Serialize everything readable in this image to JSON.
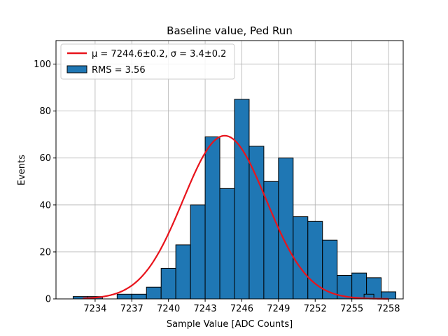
{
  "chart_data": {
    "type": "bar",
    "title": "Baseline value, Ped Run",
    "xlabel": "Sample Value [ADC Counts]",
    "ylabel": "Events",
    "xlim": [
      7230.8,
      7259.2
    ],
    "ylim": [
      0,
      110
    ],
    "x_ticks": [
      7234,
      7237,
      7240,
      7243,
      7246,
      7249,
      7252,
      7255,
      7258
    ],
    "x_tick_labels": [
      "7234",
      "7237",
      "7240",
      "7243",
      "7246",
      "7249",
      "7252",
      "7255",
      "7258"
    ],
    "y_ticks": [
      0,
      20,
      40,
      60,
      80,
      100
    ],
    "y_tick_labels": [
      "0",
      "20",
      "40",
      "60",
      "80",
      "100"
    ],
    "grid": true,
    "legend_position": "upper-left",
    "bar_color": "#1f77b4",
    "bar_edge_color": "#000000",
    "fit_color": "#e8141c",
    "histogram": {
      "name": "RMS = 3.56",
      "bins": [
        {
          "start": 7232.2,
          "end": 7233.4,
          "value": 1
        },
        {
          "start": 7233.4,
          "end": 7234.6,
          "value": 1
        },
        {
          "start": 7234.6,
          "end": 7235.8,
          "value": 0
        },
        {
          "start": 7235.8,
          "end": 7237.0,
          "value": 2
        },
        {
          "start": 7237.0,
          "end": 7238.2,
          "value": 2
        },
        {
          "start": 7238.2,
          "end": 7239.4,
          "value": 5
        },
        {
          "start": 7239.4,
          "end": 7240.6,
          "value": 13
        },
        {
          "start": 7240.6,
          "end": 7241.8,
          "value": 23
        },
        {
          "start": 7241.8,
          "end": 7243.0,
          "value": 40
        },
        {
          "start": 7243.0,
          "end": 7244.2,
          "value": 69
        },
        {
          "start": 7244.2,
          "end": 7245.4,
          "value": 47
        },
        {
          "start": 7245.4,
          "end": 7246.6,
          "value": 85
        },
        {
          "start": 7246.6,
          "end": 7247.8,
          "value": 65
        },
        {
          "start": 7247.8,
          "end": 7249.0,
          "value": 50
        },
        {
          "start": 7249.0,
          "end": 7250.2,
          "value": 60
        },
        {
          "start": 7250.2,
          "end": 7251.4,
          "value": 35
        },
        {
          "start": 7251.4,
          "end": 7252.6,
          "value": 33
        },
        {
          "start": 7252.6,
          "end": 7253.8,
          "value": 25
        },
        {
          "start": 7253.8,
          "end": 7255.0,
          "value": 10
        },
        {
          "start": 7255.0,
          "end": 7256.2,
          "value": 11
        },
        {
          "start": 7256.2,
          "end": 7257.4,
          "value": 9
        },
        {
          "start": 7257.4,
          "end": 7258.6,
          "value": 3
        }
      ]
    },
    "extra_bins": [
      {
        "start": 7256.0,
        "end": 7256.8,
        "value": 2
      }
    ],
    "fit": {
      "name": "μ = 7244.6±0.2, σ = 3.4±0.2",
      "mu": 7244.6,
      "sigma": 3.4,
      "peak": 69.5,
      "x_range": [
        7233.0,
        7258.0
      ]
    }
  }
}
